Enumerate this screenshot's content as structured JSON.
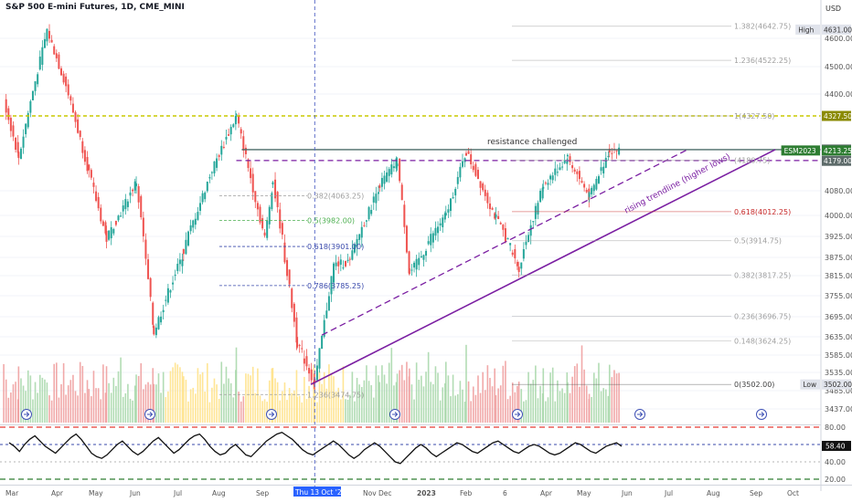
{
  "header": {
    "title": "S&P 500 E-mini Futures, 1D, CME_MINI",
    "currency": "USD"
  },
  "chart_data": {
    "type": "candlestick",
    "symbol": "ESM2023",
    "y_axis_ticks": [
      4600,
      4500,
      4400,
      4080,
      4000,
      3925,
      3875,
      3815,
      3755,
      3695,
      3635,
      3585,
      3535,
      3485,
      3437
    ],
    "ylim": [
      3437,
      4700
    ],
    "x_axis_labels": [
      "Mar",
      "Apr",
      "May",
      "Jun",
      "Jul",
      "Aug",
      "Sep",
      "Thu 13 Oct '22",
      "Nov",
      "Dec",
      "2023",
      "Feb",
      "6",
      "Apr",
      "May",
      "Jun",
      "Jul",
      "Aug",
      "Sep",
      "Oct"
    ],
    "price_path": [
      {
        "date": "2022-02-25",
        "price": 4380
      },
      {
        "date": "2022-03-08",
        "price": 4190
      },
      {
        "date": "2022-03-29",
        "price": 4630
      },
      {
        "date": "2022-04-12",
        "price": 4430
      },
      {
        "date": "2022-04-29",
        "price": 4140
      },
      {
        "date": "2022-05-12",
        "price": 3920
      },
      {
        "date": "2022-06-03",
        "price": 4110
      },
      {
        "date": "2022-06-16",
        "price": 3650
      },
      {
        "date": "2022-07-08",
        "price": 3890
      },
      {
        "date": "2022-07-29",
        "price": 4150
      },
      {
        "date": "2022-08-16",
        "price": 4327.5
      },
      {
        "date": "2022-09-06",
        "price": 3920
      },
      {
        "date": "2022-09-12",
        "price": 4110
      },
      {
        "date": "2022-09-30",
        "price": 3620
      },
      {
        "date": "2022-10-13",
        "price": 3502
      },
      {
        "date": "2022-10-27",
        "price": 3850
      },
      {
        "date": "2022-11-08",
        "price": 3860
      },
      {
        "date": "2022-11-30",
        "price": 4100
      },
      {
        "date": "2022-12-13",
        "price": 4180
      },
      {
        "date": "2022-12-22",
        "price": 3820
      },
      {
        "date": "2023-01-18",
        "price": 4000
      },
      {
        "date": "2023-02-02",
        "price": 4208
      },
      {
        "date": "2023-02-24",
        "price": 3990
      },
      {
        "date": "2023-03-13",
        "price": 3840
      },
      {
        "date": "2023-03-31",
        "price": 4100
      },
      {
        "date": "2023-04-18",
        "price": 4190
      },
      {
        "date": "2023-05-04",
        "price": 4060
      },
      {
        "date": "2023-05-19",
        "price": 4216.25
      },
      {
        "date": "2023-05-26",
        "price": 4213.25
      }
    ],
    "fibonacci_upper": [
      {
        "label": "1.382(4642.75)"
      },
      {
        "label": "1.236(4522.25)"
      },
      {
        "label": "1(4327.50)"
      },
      {
        "label": "(4180.75)"
      },
      {
        "label": "0.618(4012.25)"
      },
      {
        "label": "0.5(3914.75)"
      },
      {
        "label": "0.382(3817.25)"
      },
      {
        "label": "0.236(3696.75)"
      },
      {
        "label": "0.148(3624.25)"
      },
      {
        "label": "0(3502.00)"
      }
    ],
    "fibonacci_inner": [
      {
        "label": "0.382(4063.25)"
      },
      {
        "label": "0.5(3982.00)"
      },
      {
        "label": "0.618(3901.00)"
      },
      {
        "label": "0.786(3785.25)"
      },
      {
        "label": "1.236(3474.75)"
      }
    ],
    "price_labels": [
      {
        "text": "High",
        "value": "4631.00",
        "price": 4631,
        "style": "high"
      },
      {
        "text": "",
        "value": "4327.50",
        "price": 4327.5,
        "style": "olive"
      },
      {
        "text": "",
        "value": "4216.25",
        "price": 4216.25,
        "style": "gray"
      },
      {
        "text": "ESM2023",
        "value": "4213.25",
        "price": 4213.25,
        "style": "green"
      },
      {
        "text": "",
        "value": "4179.00",
        "price": 4179,
        "style": "gray"
      },
      {
        "text": "Low",
        "value": "3502.00",
        "price": 3502,
        "style": "low"
      }
    ],
    "annotations": {
      "resistance": "resistance challenged",
      "trendline": "rising trendline (higher lows)"
    },
    "oscillator": {
      "levels": [
        80,
        60,
        40,
        20
      ],
      "current": "58.40",
      "series": [
        62,
        58,
        52,
        60,
        66,
        70,
        64,
        58,
        54,
        50,
        56,
        62,
        68,
        72,
        66,
        58,
        50,
        46,
        44,
        48,
        54,
        60,
        64,
        58,
        52,
        48,
        52,
        58,
        64,
        68,
        62,
        56,
        50,
        54,
        60,
        66,
        70,
        72,
        66,
        58,
        52,
        48,
        50,
        56,
        60,
        54,
        48,
        46,
        52,
        58,
        64,
        68,
        72,
        74,
        70,
        66,
        60,
        54,
        50,
        48,
        52,
        56,
        60,
        64,
        60,
        54,
        48,
        44,
        48,
        54,
        58,
        62,
        58,
        52,
        46,
        40,
        38,
        44,
        50,
        56,
        60,
        56,
        50,
        46,
        50,
        54,
        58,
        62,
        60,
        56,
        52,
        50,
        54,
        58,
        62,
        64,
        60,
        56,
        52,
        50,
        54,
        58,
        60,
        58,
        54,
        50,
        48,
        50,
        54,
        58,
        62,
        60,
        56,
        52,
        50,
        54,
        58,
        60,
        62,
        58
      ]
    },
    "colors": {
      "up": "#26a69a",
      "down": "#ef5350",
      "purple": "#7b1fa2",
      "olive": "#c8c800",
      "resistance": "#4a6b68",
      "red_dash": "#e53935",
      "green_dash": "#2e7d32",
      "volume_green": "#a5d6a7",
      "volume_red": "#ef9a9a",
      "volume_yellow": "#ffe082",
      "event_icon": "#3f51b5"
    }
  }
}
